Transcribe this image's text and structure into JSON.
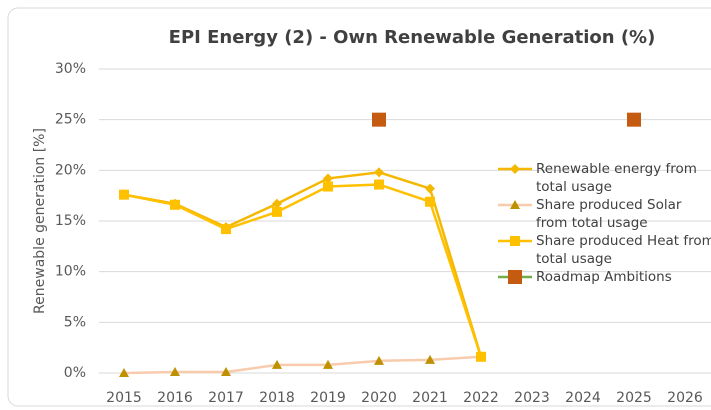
{
  "chart_data": {
    "type": "line",
    "title": "EPI Energy (2) - Own Renewable Generation (%)",
    "y_label": "Renewable generation [%]",
    "categories": [
      "2015",
      "2016",
      "2017",
      "2018",
      "2019",
      "2020",
      "2021",
      "2022",
      "2023",
      "2024",
      "2025",
      "2026"
    ],
    "series": [
      {
        "name": "Renewable energy from total usage",
        "color": "#f5b800",
        "line_color": "#f5b800",
        "marker": "diamond",
        "show_line": true,
        "values": [
          17.6,
          16.7,
          14.4,
          16.7,
          19.2,
          19.8,
          18.2,
          1.6,
          null,
          null,
          null,
          null
        ]
      },
      {
        "name": "Share produced Solar from total usage",
        "color": "#bf9000",
        "line_color": "#f8cbad",
        "marker": "triangle",
        "show_line": true,
        "values": [
          0.0,
          0.1,
          0.1,
          0.8,
          0.8,
          1.2,
          1.3,
          1.6,
          null,
          null,
          null,
          null
        ]
      },
      {
        "name": "Share produced Heat from total usage",
        "color": "#ffc000",
        "line_color": "#ffc000",
        "marker": "square",
        "show_line": true,
        "values": [
          17.6,
          16.6,
          14.2,
          15.9,
          18.4,
          18.6,
          16.9,
          1.6,
          null,
          null,
          null,
          null
        ]
      },
      {
        "name": "Roadmap Ambitions",
        "color": "#c55a11",
        "line_color": "#70ad47",
        "marker": "square",
        "show_line": false,
        "values": [
          null,
          null,
          null,
          null,
          null,
          25,
          null,
          null,
          null,
          null,
          25,
          null
        ]
      }
    ],
    "ylim": [
      0,
      30
    ],
    "yticks": [
      {
        "value": 0,
        "label": "0%"
      },
      {
        "value": 5,
        "label": "5%"
      },
      {
        "value": 10,
        "label": "10%"
      },
      {
        "value": 15,
        "label": "15%"
      },
      {
        "value": 20,
        "label": "20%"
      },
      {
        "value": 25,
        "label": "25%"
      },
      {
        "value": 30,
        "label": "30%"
      }
    ],
    "grid": true,
    "legend": "right"
  }
}
